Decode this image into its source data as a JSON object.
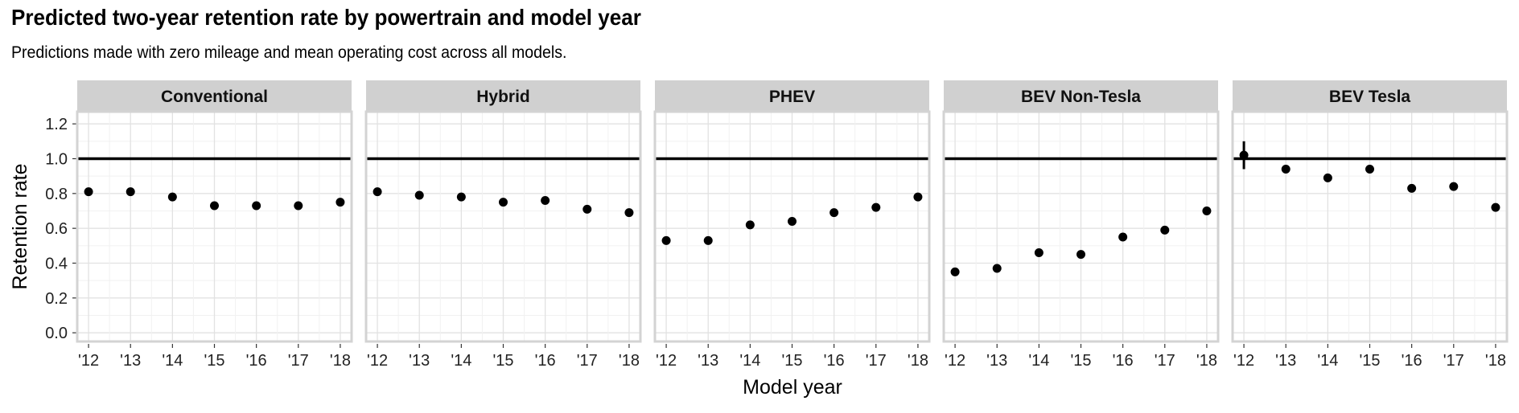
{
  "chart_data": {
    "type": "scatter",
    "title": "Predicted two-year retention rate by powertrain and model year",
    "subtitle": "Predictions made with zero mileage and mean operating cost across all models.",
    "xlabel": "Model year",
    "ylabel": "Retention rate",
    "ylim": [
      -0.05,
      1.27
    ],
    "yticks": [
      0.0,
      0.2,
      0.4,
      0.6,
      0.8,
      1.0,
      1.2
    ],
    "ytick_labels": [
      "0.0",
      "0.2",
      "0.4",
      "0.6",
      "0.8",
      "1.0",
      "1.2"
    ],
    "x": [
      2012,
      2013,
      2014,
      2015,
      2016,
      2017,
      2018
    ],
    "xtick_labels": [
      "'12",
      "'13",
      "'14",
      "'15",
      "'16",
      "'17",
      "'18"
    ],
    "reference_line": 1.0,
    "grid": true,
    "facets": [
      {
        "name": "Conventional",
        "values": [
          0.81,
          0.81,
          0.78,
          0.73,
          0.73,
          0.73,
          0.75
        ]
      },
      {
        "name": "Hybrid",
        "values": [
          0.81,
          0.79,
          0.78,
          0.75,
          0.76,
          0.71,
          0.69
        ]
      },
      {
        "name": "PHEV",
        "values": [
          0.53,
          0.53,
          0.62,
          0.64,
          0.69,
          0.72,
          0.78
        ]
      },
      {
        "name": "BEV Non-Tesla",
        "values": [
          0.35,
          0.37,
          0.46,
          0.45,
          0.55,
          0.59,
          0.7
        ]
      },
      {
        "name": "BEV Tesla",
        "values": [
          1.02,
          0.94,
          0.89,
          0.94,
          0.83,
          0.84,
          0.72
        ],
        "error_bars": [
          [
            0.94,
            1.1
          ],
          null,
          null,
          null,
          null,
          null,
          null
        ]
      }
    ]
  }
}
